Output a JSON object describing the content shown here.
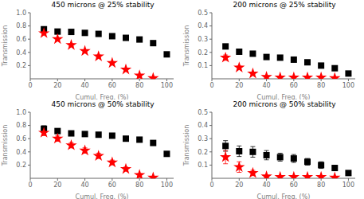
{
  "chart_data": [
    {
      "type": "scatter",
      "title": "450 microns @ 25% stability",
      "x_label": "Cumul. Freq. (%)",
      "y_label": "Transmission",
      "xlim": [
        0,
        105
      ],
      "xticks": [
        0,
        20,
        40,
        60,
        80,
        100
      ],
      "ylim": [
        0,
        1.0
      ],
      "yticks": [
        0.2,
        0.4,
        0.6,
        0.8,
        {
          "value": 1.0,
          "label": "1.0"
        }
      ],
      "grid": false,
      "series": [
        {
          "color": "#000000",
          "marker": "square",
          "x": [
            10,
            20,
            30,
            40,
            50,
            60,
            70,
            80,
            90,
            100
          ],
          "values": [
            0.75,
            0.715,
            0.71,
            0.695,
            0.68,
            0.645,
            0.62,
            0.595,
            0.54,
            0.37
          ],
          "yerr": [
            0.02,
            0.015,
            0.01,
            0.01,
            0.01,
            0.01,
            0.01,
            0.01,
            0.01,
            0.015
          ]
        },
        {
          "color": "#ff0000",
          "marker": "star",
          "x": [
            10,
            20,
            30,
            40,
            50,
            60,
            70,
            80,
            90
          ],
          "values": [
            0.69,
            0.6,
            0.51,
            0.42,
            0.34,
            0.24,
            0.14,
            0.05,
            0.01
          ],
          "yerr": [
            0.02,
            0.02,
            0.02,
            0.02,
            0.02,
            0.02,
            0.02,
            0.015,
            0.01
          ]
        }
      ]
    },
    {
      "type": "scatter",
      "title": "200 microns @ 25% stability",
      "x_label": "Cumul. Freq. (%)",
      "y_label": "Transmission",
      "xlim": [
        0,
        105
      ],
      "xticks": [
        0,
        20,
        40,
        60,
        80,
        100
      ],
      "ylim": [
        0,
        0.5
      ],
      "yticks": [
        0.1,
        0.2,
        0.3,
        0.4,
        0.5
      ],
      "grid": false,
      "series": [
        {
          "color": "#000000",
          "marker": "square",
          "x": [
            10,
            20,
            30,
            40,
            50,
            60,
            70,
            80,
            90,
            100
          ],
          "values": [
            0.245,
            0.205,
            0.19,
            0.165,
            0.16,
            0.145,
            0.125,
            0.1,
            0.08,
            0.04
          ],
          "yerr": [
            0.012,
            0.008,
            0.008,
            0.007,
            0.007,
            0.007,
            0.007,
            0.007,
            0.006,
            0.005
          ]
        },
        {
          "color": "#ff0000",
          "marker": "star",
          "x": [
            10,
            20,
            30,
            40,
            50,
            60,
            70,
            80,
            90
          ],
          "values": [
            0.16,
            0.085,
            0.04,
            0.015,
            0.01,
            0.01,
            0.01,
            0.01,
            0.005
          ],
          "yerr": [
            0.02,
            0.012,
            0.008,
            0.004,
            0.003,
            0.003,
            0.003,
            0.003,
            0.002
          ]
        }
      ]
    },
    {
      "type": "scatter",
      "title": "450 microns @ 50% stability",
      "x_label": "Cumul. Freq. (%)",
      "y_label": "Transmission",
      "xlim": [
        0,
        105
      ],
      "xticks": [
        0,
        20,
        40,
        60,
        80,
        100
      ],
      "ylim": [
        0,
        1.0
      ],
      "yticks": [
        0.2,
        0.4,
        0.6,
        0.8,
        {
          "value": 1.0,
          "label": "1.0"
        }
      ],
      "grid": false,
      "series": [
        {
          "color": "#000000",
          "marker": "square",
          "x": [
            10,
            20,
            30,
            40,
            50,
            60,
            70,
            80,
            90,
            100
          ],
          "values": [
            0.75,
            0.715,
            0.68,
            0.67,
            0.66,
            0.645,
            0.6,
            0.585,
            0.535,
            0.37
          ],
          "yerr": [
            0.045,
            0.035,
            0.035,
            0.03,
            0.03,
            0.03,
            0.03,
            0.03,
            0.03,
            0.025
          ]
        },
        {
          "color": "#ff0000",
          "marker": "star",
          "x": [
            10,
            20,
            30,
            40,
            50,
            60,
            70,
            80,
            90
          ],
          "values": [
            0.69,
            0.6,
            0.5,
            0.42,
            0.34,
            0.24,
            0.14,
            0.05,
            0.01
          ],
          "yerr": [
            0.045,
            0.04,
            0.04,
            0.04,
            0.04,
            0.035,
            0.03,
            0.02,
            0.01
          ]
        }
      ]
    },
    {
      "type": "scatter",
      "title": "200 microns @ 50% stability",
      "x_label": "Cumul. Freq. (%)",
      "y_label": "Transmission",
      "xlim": [
        0,
        105
      ],
      "xticks": [
        0,
        20,
        40,
        60,
        80,
        100
      ],
      "ylim": [
        0,
        0.5
      ],
      "yticks": [
        0.1,
        0.2,
        0.3,
        0.4,
        0.5
      ],
      "grid": false,
      "series": [
        {
          "color": "#000000",
          "marker": "square",
          "x": [
            10,
            20,
            30,
            40,
            50,
            60,
            70,
            80,
            90,
            100
          ],
          "values": [
            0.245,
            0.205,
            0.2,
            0.175,
            0.16,
            0.15,
            0.125,
            0.1,
            0.078,
            0.04
          ],
          "yerr": [
            0.04,
            0.04,
            0.04,
            0.035,
            0.03,
            0.03,
            0.025,
            0.025,
            0.02,
            0.015
          ]
        },
        {
          "color": "#ff0000",
          "marker": "star",
          "x": [
            10,
            20,
            30,
            40,
            50,
            60,
            70,
            80,
            90
          ],
          "values": [
            0.16,
            0.085,
            0.04,
            0.015,
            0.01,
            0.01,
            0.01,
            0.01,
            0.005
          ],
          "yerr": [
            0.05,
            0.04,
            0.02,
            0.008,
            0.005,
            0.005,
            0.005,
            0.005,
            0.003
          ]
        }
      ]
    }
  ]
}
